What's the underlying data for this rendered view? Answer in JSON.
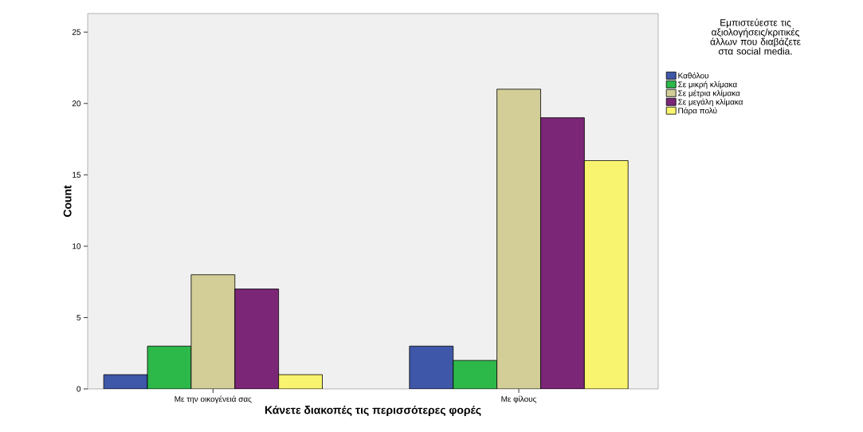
{
  "chart_data": {
    "type": "bar",
    "xlabel": "Κάνετε διακοπές τις περισσότερες φορές",
    "ylabel": "Count",
    "legend_title": "Εμπιστεύεστε τις αξιολογήσεις/κριτικές άλλων που διαβάζετε στα social media.",
    "categories": [
      "Με την οικογένειά σας",
      "Με φίλους"
    ],
    "series": [
      {
        "name": "Καθόλου",
        "color": "#3f57a8",
        "values": [
          1,
          3
        ]
      },
      {
        "name": "Σε μικρή κλίμακα",
        "color": "#2db84a",
        "values": [
          3,
          2
        ]
      },
      {
        "name": "Σε μέτρια κλίμακα",
        "color": "#d3ce97",
        "values": [
          8,
          21
        ]
      },
      {
        "name": "Σε μεγάλη κλίμακα",
        "color": "#7b2677",
        "values": [
          7,
          19
        ]
      },
      {
        "name": "Πάρα πολύ",
        "color": "#f9f46f",
        "values": [
          1,
          16
        ]
      }
    ],
    "ylim": [
      0,
      26.3
    ],
    "yticks": [
      0,
      5,
      10,
      15,
      20,
      25
    ],
    "grid": false,
    "legend": "right"
  }
}
